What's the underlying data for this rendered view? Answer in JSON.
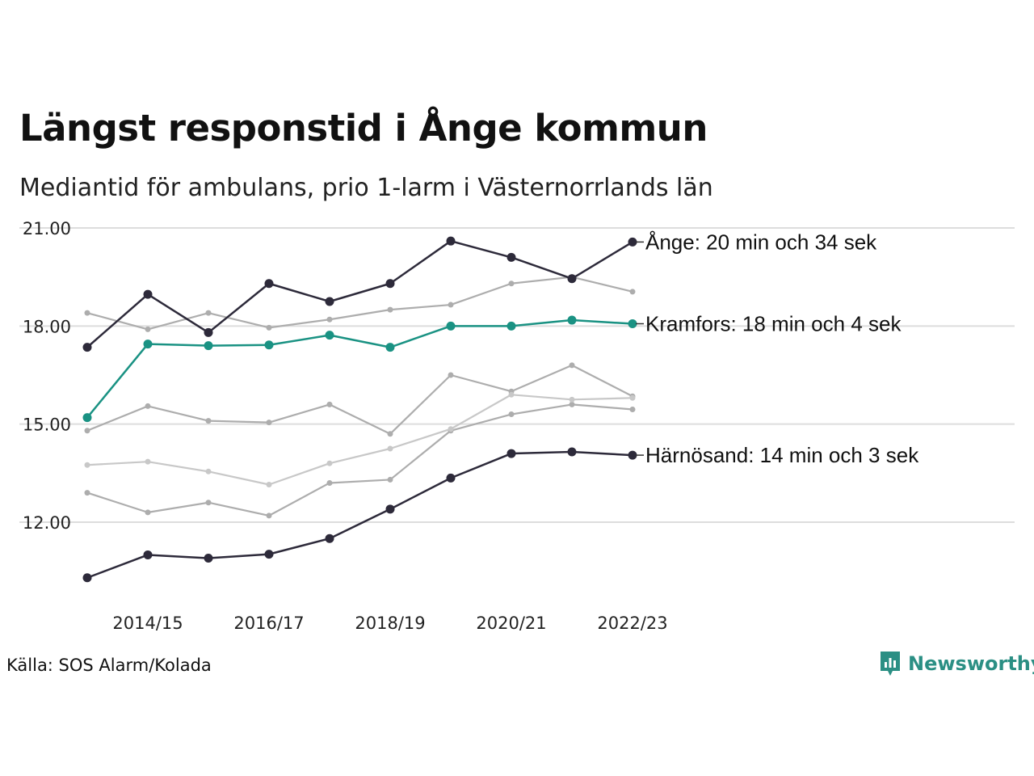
{
  "header": {
    "title": "Längst responstid i Ånge kommun",
    "subtitle": "Mediantid för ambulans, prio 1-larm i Västernorrlands län"
  },
  "footer": {
    "source": "Källa: SOS Alarm/Kolada",
    "brand": "Newsworthy",
    "brand_color": "#2b8f84"
  },
  "chart_data": {
    "type": "line",
    "title": "",
    "xlabel": "",
    "ylabel": "",
    "ylim": [
      9.65,
      21.2
    ],
    "grid": true,
    "x": [
      "2013/14",
      "2014/15",
      "2015/16",
      "2016/17",
      "2017/18",
      "2018/19",
      "2019/20",
      "2020/21",
      "2021/22",
      "2022/23"
    ],
    "x_tick_labels": [
      "2014/15",
      "2016/17",
      "2018/19",
      "2020/21",
      "2022/23"
    ],
    "y_tick_labels": [
      "12.00",
      "15.00",
      "18.00",
      "21.00"
    ],
    "y_ticks": [
      12,
      15,
      18,
      21
    ],
    "colors": {
      "highlight_dark": "#2d2a3a",
      "highlight_teal": "#1a9283",
      "background_series": "#adadad",
      "background_series_light": "#c8c8c8",
      "grid": "#dddddd"
    },
    "series": [
      {
        "name": "",
        "style": "gray",
        "values": [
          18.4,
          17.9,
          18.4,
          17.95,
          18.2,
          18.5,
          18.65,
          19.3,
          19.5,
          19.05
        ]
      },
      {
        "name": "",
        "style": "gray",
        "values": [
          14.8,
          15.55,
          15.1,
          15.05,
          15.6,
          14.7,
          16.5,
          16.0,
          16.8,
          15.85
        ]
      },
      {
        "name": "",
        "style": "gray",
        "values": [
          12.9,
          12.3,
          12.6,
          12.2,
          13.2,
          13.3,
          14.8,
          15.3,
          15.6,
          15.45
        ]
      },
      {
        "name": "",
        "style": "gray-light",
        "values": [
          13.75,
          13.85,
          13.55,
          13.15,
          13.8,
          14.25,
          14.85,
          15.9,
          15.75,
          15.8
        ]
      },
      {
        "name": "Ånge",
        "style": "dark",
        "label": "Ånge: 20 min och 34 sek",
        "values": [
          17.35,
          18.97,
          17.8,
          19.3,
          18.75,
          19.3,
          20.6,
          20.1,
          19.45,
          20.57
        ]
      },
      {
        "name": "Kramfors",
        "style": "teal",
        "label": "Kramfors: 18 min och 4 sek",
        "values": [
          15.2,
          17.45,
          17.4,
          17.42,
          17.72,
          17.35,
          18.0,
          18.0,
          18.18,
          18.07
        ]
      },
      {
        "name": "Härnösand",
        "style": "dark",
        "label": "Härnösand: 14 min och 3 sek",
        "values": [
          10.3,
          11.0,
          10.9,
          11.02,
          11.5,
          12.4,
          13.35,
          14.1,
          14.15,
          14.05
        ]
      }
    ]
  }
}
